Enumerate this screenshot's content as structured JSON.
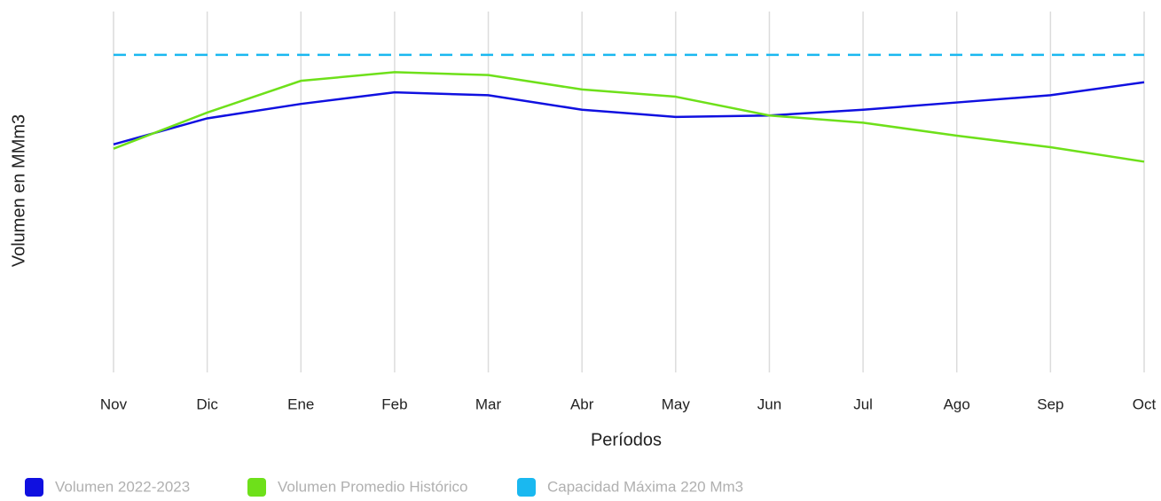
{
  "chart_data": {
    "type": "line",
    "x_label": "Períodos",
    "y_label": "Volumen en MMm3",
    "categories": [
      "Nov",
      "Dic",
      "Ene",
      "Feb",
      "Mar",
      "Abr",
      "May",
      "Jun",
      "Jul",
      "Ago",
      "Sep",
      "Oct"
    ],
    "ylim": [
      0,
      250
    ],
    "grid": true,
    "legend": "bottom-left",
    "series": [
      {
        "name": "Volumen 2022-2023",
        "color": "#1010e0",
        "values": [
          158,
          176,
          186,
          194,
          192,
          182,
          177,
          178,
          182,
          187,
          192,
          201
        ]
      },
      {
        "name": "Volumen Promedio Histórico",
        "color": "#6ee01a",
        "values": [
          155,
          180,
          202,
          208,
          206,
          196,
          191,
          178,
          173,
          164,
          156,
          146
        ]
      },
      {
        "name": "Capacidad Máxima 220 Mm3",
        "color": "#1ab8f0",
        "dashed": true,
        "values": [
          220,
          220,
          220,
          220,
          220,
          220,
          220,
          220,
          220,
          220,
          220,
          220
        ]
      }
    ]
  }
}
